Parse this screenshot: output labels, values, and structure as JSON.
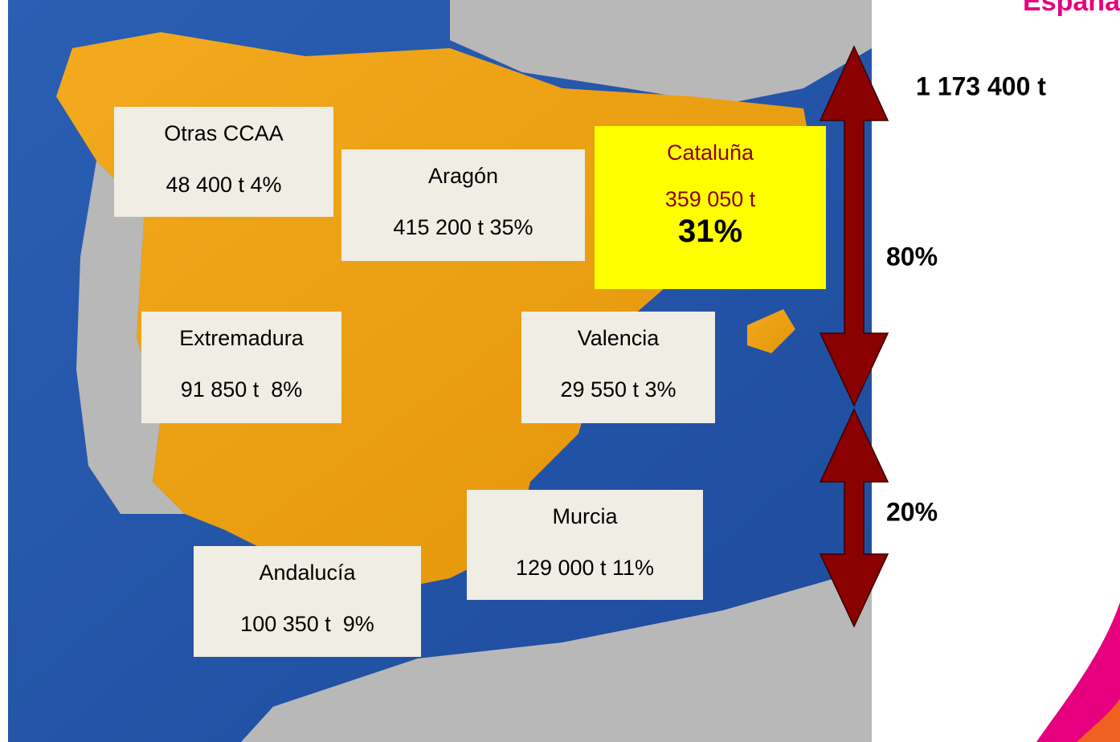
{
  "header": {
    "title": "España",
    "total": "1 173 400 t"
  },
  "regions": [
    {
      "name": "Otras CCAA",
      "lines": [
        "48 400 t 4%"
      ]
    },
    {
      "name": "Aragón",
      "lines": [
        "415 200 t 35%"
      ]
    },
    {
      "name": "Cataluña",
      "lines": [
        "359 050 t",
        "31%"
      ]
    },
    {
      "name": "Extremadura",
      "lines": [
        "91 850 t  8%"
      ]
    },
    {
      "name": "Valencia",
      "lines": [
        "29 550 t 3%"
      ]
    },
    {
      "name": "Murcia",
      "lines": [
        "129 000 t 11%"
      ]
    },
    {
      "name": "Andalucía",
      "lines": [
        "100 350 t  9%"
      ]
    }
  ],
  "arrows": [
    {
      "label": "80%"
    },
    {
      "label": "20%"
    }
  ]
}
